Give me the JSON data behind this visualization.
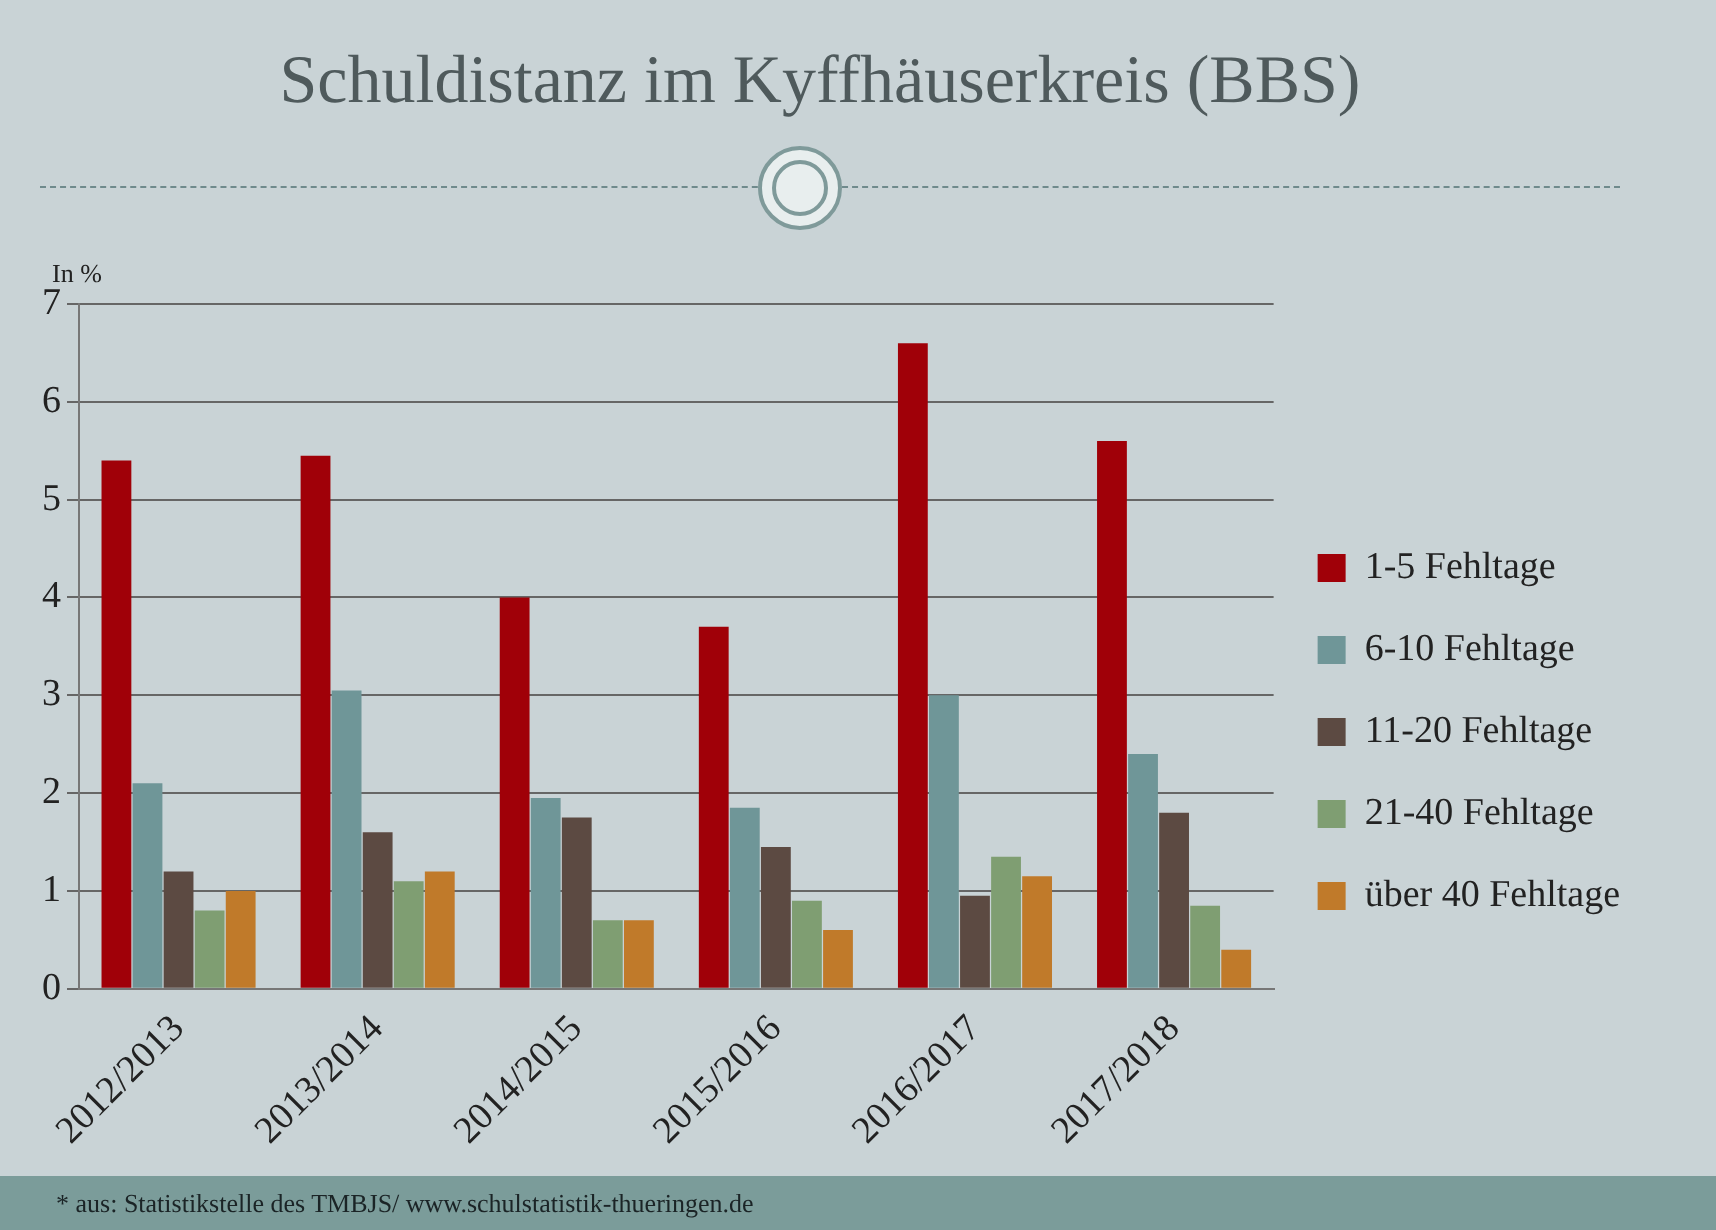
{
  "chart_data": {
    "type": "bar",
    "title": "Schuldistanz im Kyffhäuserkreis (BBS)",
    "ylabel": "In %",
    "categories": [
      "2012/2013",
      "2013/2014",
      "2014/2015",
      "2015/2016",
      "2016/2017",
      "2017/2018"
    ],
    "series": [
      {
        "name": "1-5 Fehltage",
        "color": "#a00008",
        "values": [
          5.4,
          5.45,
          4.0,
          3.7,
          6.6,
          5.6
        ]
      },
      {
        "name": "6-10 Fehltage",
        "color": "#6f9698",
        "values": [
          2.1,
          3.05,
          1.95,
          1.85,
          3.0,
          2.4
        ]
      },
      {
        "name": "11-20 Fehltage",
        "color": "#5c4a42",
        "values": [
          1.2,
          1.6,
          1.75,
          1.45,
          0.95,
          1.8
        ]
      },
      {
        "name": "21-40 Fehltage",
        "color": "#7f9e72",
        "values": [
          0.8,
          1.1,
          0.7,
          0.9,
          1.35,
          0.85
        ]
      },
      {
        "name": "über 40 Fehltage",
        "color": "#c07a2a",
        "values": [
          1.0,
          1.2,
          0.7,
          0.6,
          1.15,
          0.4
        ]
      }
    ],
    "ylim": [
      0,
      7
    ],
    "yticks": [
      0,
      1,
      2,
      3,
      4,
      5,
      6,
      7
    ],
    "grid": "y",
    "legend": "right",
    "annotations": [
      "* aus: Statistikstelle des TMBJS/ www.schulstatistik-thueringen.de"
    ]
  }
}
